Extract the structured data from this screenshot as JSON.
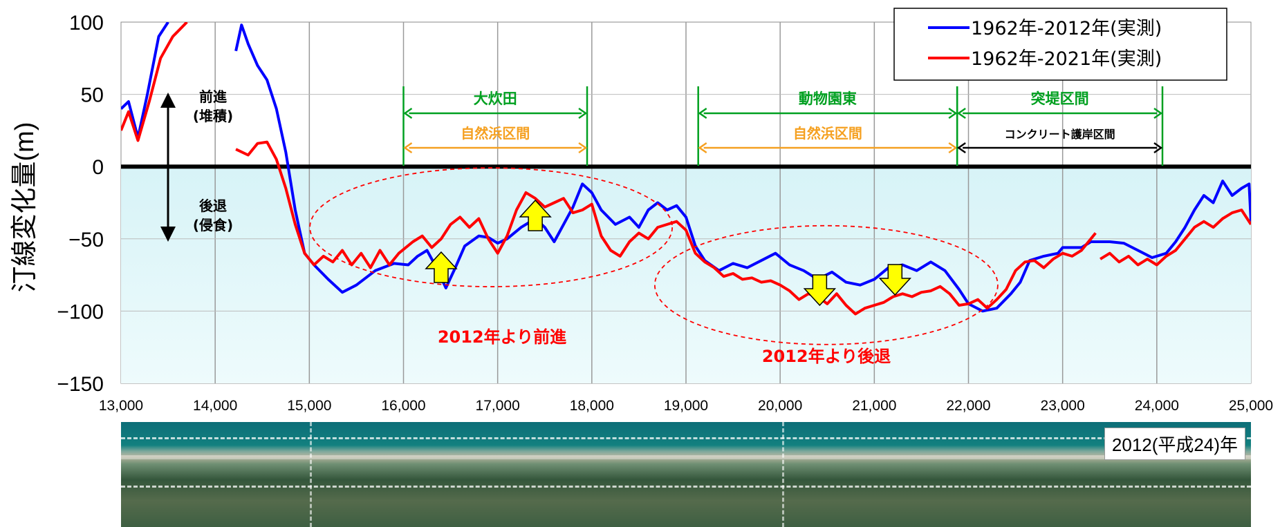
{
  "chart_data": {
    "type": "line",
    "ylabel": "汀線変化量(m)",
    "xlim": [
      13000,
      25000
    ],
    "ylim": [
      -150,
      100
    ],
    "x_ticks": [
      13000,
      14000,
      15000,
      16000,
      17000,
      18000,
      19000,
      20000,
      21000,
      22000,
      23000,
      24000,
      25000
    ],
    "x_tick_labels": [
      "13,000",
      "14,000",
      "15,000",
      "16,000",
      "17,000",
      "18,000",
      "19,000",
      "20,000",
      "21,000",
      "22,000",
      "23,000",
      "24,000",
      "25,000"
    ],
    "y_ticks": [
      100,
      50,
      0,
      -50,
      -100,
      -150
    ],
    "y_tick_labels": [
      "100",
      "50",
      "0",
      "−50",
      "−100",
      "−150"
    ],
    "grid": true,
    "legend_position": "top-right",
    "series": [
      {
        "name": "1962年-2012年(実測)",
        "color": "#0000ff",
        "segments": [
          [
            [
              13000,
              40
            ],
            [
              13080,
              45
            ],
            [
              13180,
              20
            ],
            [
              13280,
              50
            ],
            [
              13400,
              90
            ],
            [
              13500,
              100
            ]
          ],
          [
            [
              14220,
              80
            ],
            [
              14280,
              98
            ],
            [
              14350,
              85
            ],
            [
              14450,
              70
            ],
            [
              14550,
              60
            ],
            [
              14650,
              40
            ],
            [
              14750,
              10
            ],
            [
              14850,
              -30
            ],
            [
              14950,
              -60
            ],
            [
              15050,
              -68
            ],
            [
              15200,
              -78
            ],
            [
              15350,
              -87
            ],
            [
              15500,
              -82
            ],
            [
              15700,
              -72
            ],
            [
              15900,
              -67
            ],
            [
              16050,
              -68
            ],
            [
              16150,
              -62
            ],
            [
              16250,
              -58
            ],
            [
              16350,
              -70
            ],
            [
              16450,
              -84
            ],
            [
              16550,
              -70
            ],
            [
              16650,
              -55
            ],
            [
              16800,
              -48
            ],
            [
              16900,
              -49
            ],
            [
              17000,
              -53
            ],
            [
              17100,
              -50
            ],
            [
              17250,
              -42
            ],
            [
              17400,
              -36
            ],
            [
              17500,
              -42
            ],
            [
              17600,
              -52
            ],
            [
              17700,
              -40
            ],
            [
              17800,
              -28
            ],
            [
              17900,
              -12
            ],
            [
              18000,
              -18
            ],
            [
              18100,
              -30
            ],
            [
              18250,
              -40
            ],
            [
              18400,
              -35
            ],
            [
              18500,
              -42
            ],
            [
              18600,
              -30
            ],
            [
              18700,
              -25
            ],
            [
              18800,
              -30
            ],
            [
              18900,
              -27
            ],
            [
              19000,
              -35
            ],
            [
              19100,
              -55
            ],
            [
              19200,
              -65
            ],
            [
              19350,
              -72
            ],
            [
              19500,
              -67
            ],
            [
              19650,
              -70
            ],
            [
              19800,
              -65
            ],
            [
              19950,
              -60
            ],
            [
              20100,
              -68
            ],
            [
              20250,
              -72
            ],
            [
              20400,
              -78
            ],
            [
              20550,
              -73
            ],
            [
              20700,
              -80
            ],
            [
              20850,
              -82
            ],
            [
              21000,
              -78
            ],
            [
              21150,
              -70
            ],
            [
              21300,
              -68
            ],
            [
              21450,
              -72
            ],
            [
              21600,
              -66
            ],
            [
              21750,
              -72
            ],
            [
              21900,
              -85
            ],
            [
              22000,
              -95
            ],
            [
              22150,
              -100
            ],
            [
              22300,
              -98
            ],
            [
              22450,
              -88
            ],
            [
              22550,
              -80
            ],
            [
              22650,
              -65
            ],
            [
              22800,
              -62
            ],
            [
              22950,
              -60
            ],
            [
              23000,
              -56
            ],
            [
              23200,
              -56
            ],
            [
              23300,
              -52
            ],
            [
              23500,
              -52
            ],
            [
              23650,
              -53
            ],
            [
              23800,
              -58
            ],
            [
              23950,
              -63
            ],
            [
              24100,
              -60
            ],
            [
              24200,
              -52
            ],
            [
              24300,
              -42
            ],
            [
              24400,
              -30
            ],
            [
              24500,
              -20
            ],
            [
              24600,
              -25
            ],
            [
              24700,
              -10
            ],
            [
              24800,
              -20
            ],
            [
              24900,
              -15
            ],
            [
              24980,
              -12
            ],
            [
              25000,
              -38
            ]
          ]
        ]
      },
      {
        "name": "1962年-2021年(実測)",
        "color": "#ff0000",
        "segments": [
          [
            [
              13000,
              25
            ],
            [
              13080,
              38
            ],
            [
              13180,
              18
            ],
            [
              13300,
              45
            ],
            [
              13420,
              75
            ],
            [
              13550,
              90
            ],
            [
              13700,
              100
            ]
          ],
          [
            [
              14220,
              12
            ],
            [
              14350,
              8
            ],
            [
              14450,
              16
            ],
            [
              14550,
              17
            ],
            [
              14650,
              5
            ],
            [
              14750,
              -15
            ],
            [
              14850,
              -40
            ],
            [
              14950,
              -60
            ],
            [
              15050,
              -68
            ],
            [
              15150,
              -62
            ],
            [
              15250,
              -66
            ],
            [
              15350,
              -58
            ],
            [
              15450,
              -68
            ],
            [
              15550,
              -60
            ],
            [
              15650,
              -70
            ],
            [
              15750,
              -58
            ],
            [
              15850,
              -68
            ],
            [
              15950,
              -60
            ],
            [
              16100,
              -52
            ],
            [
              16200,
              -48
            ],
            [
              16300,
              -56
            ],
            [
              16400,
              -50
            ],
            [
              16500,
              -40
            ],
            [
              16600,
              -35
            ],
            [
              16700,
              -42
            ],
            [
              16800,
              -36
            ],
            [
              16900,
              -50
            ],
            [
              17000,
              -60
            ],
            [
              17100,
              -48
            ],
            [
              17200,
              -30
            ],
            [
              17300,
              -18
            ],
            [
              17400,
              -22
            ],
            [
              17500,
              -28
            ],
            [
              17600,
              -25
            ],
            [
              17700,
              -22
            ],
            [
              17800,
              -32
            ],
            [
              17900,
              -30
            ],
            [
              18000,
              -26
            ],
            [
              18100,
              -48
            ],
            [
              18200,
              -58
            ],
            [
              18300,
              -62
            ],
            [
              18400,
              -52
            ],
            [
              18500,
              -46
            ],
            [
              18600,
              -50
            ],
            [
              18700,
              -42
            ],
            [
              18800,
              -40
            ],
            [
              18900,
              -38
            ],
            [
              19000,
              -44
            ],
            [
              19100,
              -60
            ],
            [
              19200,
              -66
            ],
            [
              19300,
              -70
            ],
            [
              19400,
              -76
            ],
            [
              19500,
              -74
            ],
            [
              19600,
              -78
            ],
            [
              19700,
              -77
            ],
            [
              19800,
              -80
            ],
            [
              19900,
              -79
            ],
            [
              20000,
              -82
            ],
            [
              20100,
              -86
            ],
            [
              20200,
              -92
            ],
            [
              20300,
              -88
            ],
            [
              20400,
              -90
            ],
            [
              20500,
              -95
            ],
            [
              20600,
              -88
            ],
            [
              20700,
              -96
            ],
            [
              20800,
              -102
            ],
            [
              20900,
              -98
            ],
            [
              21000,
              -96
            ],
            [
              21100,
              -94
            ],
            [
              21200,
              -90
            ],
            [
              21300,
              -88
            ],
            [
              21400,
              -90
            ],
            [
              21500,
              -87
            ],
            [
              21600,
              -86
            ],
            [
              21700,
              -83
            ],
            [
              21800,
              -88
            ],
            [
              21900,
              -96
            ],
            [
              22000,
              -95
            ],
            [
              22100,
              -92
            ],
            [
              22200,
              -98
            ],
            [
              22300,
              -92
            ],
            [
              22400,
              -85
            ],
            [
              22500,
              -72
            ],
            [
              22600,
              -66
            ],
            [
              22700,
              -65
            ],
            [
              22800,
              -70
            ],
            [
              22900,
              -64
            ],
            [
              23000,
              -60
            ],
            [
              23100,
              -62
            ],
            [
              23200,
              -58
            ],
            [
              23300,
              -50
            ],
            [
              23350,
              -46
            ]
          ],
          [
            [
              23400,
              -64
            ],
            [
              23500,
              -60
            ],
            [
              23600,
              -66
            ],
            [
              23700,
              -62
            ],
            [
              23800,
              -68
            ],
            [
              23900,
              -64
            ],
            [
              24000,
              -68
            ],
            [
              24100,
              -62
            ],
            [
              24200,
              -58
            ],
            [
              24300,
              -50
            ],
            [
              24400,
              -42
            ],
            [
              24500,
              -38
            ],
            [
              24600,
              -42
            ],
            [
              24700,
              -36
            ],
            [
              24800,
              -32
            ],
            [
              24900,
              -30
            ],
            [
              25000,
              -40
            ]
          ]
        ]
      }
    ],
    "reference_line": {
      "y": 0,
      "color": "#000000"
    },
    "annotations": {
      "advance_label_1": "前進",
      "advance_label_2": "(堆積)",
      "retreat_label_1": "後退",
      "retreat_label_2": "(侵食)",
      "section_1_name": "大炊田",
      "section_1_type": "自然浜区間",
      "section_2_name": "動物園東",
      "section_2_type": "自然浜区間",
      "section_3_name": "突堤区間",
      "section_3_type": "コンクリート護岸区間",
      "note_advance": "2012年より前進",
      "note_retreat": "2012年より後退",
      "section_color": "#00a020",
      "type_color": "#f5a020",
      "note_color": "#ff0000",
      "arrow_fill": "#ffff00"
    }
  },
  "photo": {
    "label": "2012(平成24)年"
  }
}
